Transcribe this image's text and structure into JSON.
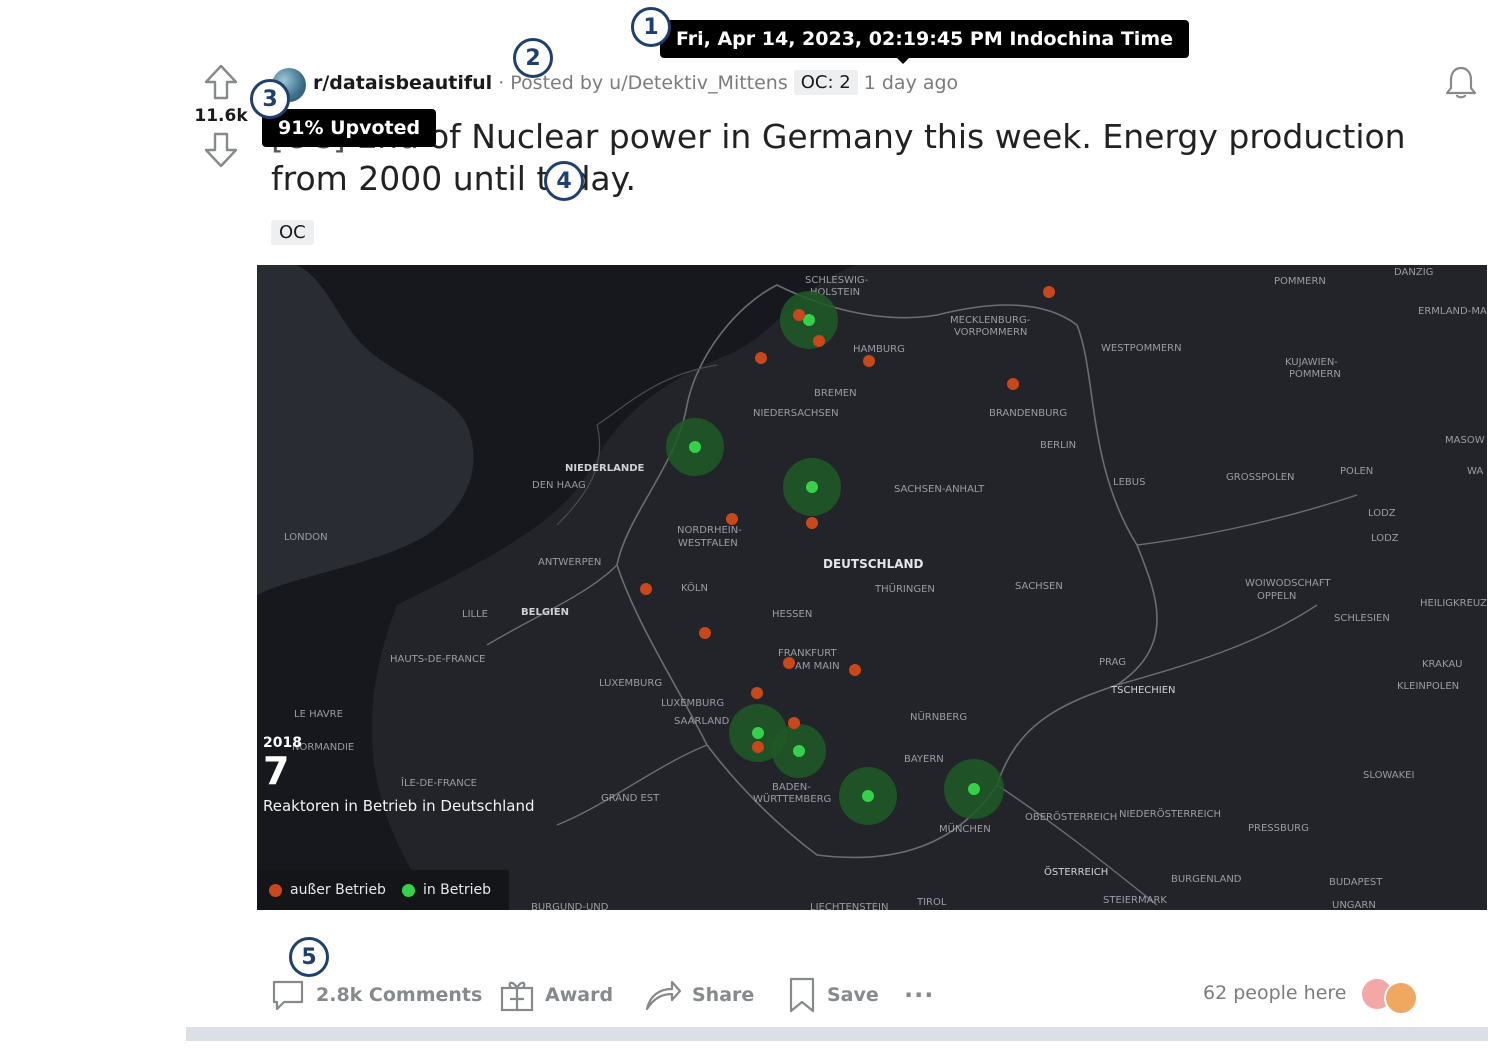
{
  "post": {
    "subreddit": "r/dataisbeautiful",
    "posted_by": "· Posted by u/Detektiv_Mittens",
    "oc_badge": "OC: 2",
    "time_ago": "1 day ago",
    "score": "11.6k",
    "title_hidden_prefix": "[OC] End",
    "title": "of Nuclear power in Germany this week. Energy production from 2000 until today.",
    "flair": "OC"
  },
  "tooltips": {
    "timestamp": "Fri, Apr 14, 2023, 02:19:45 PM Indochina Time",
    "upvoted": "91% Upvoted"
  },
  "badges": [
    "1",
    "2",
    "3",
    "4",
    "5"
  ],
  "map": {
    "year": "2018",
    "count": "7",
    "caption": "Reaktoren in Betrieb in Deutschland",
    "legend_off": "außer Betrieb",
    "legend_on": "in Betrieb",
    "color_off": "#c8471b",
    "color_on": "#36d14a",
    "labels": {
      "schleswig": "SCHLESWIG-",
      "holstein": "HOLSTEIN",
      "mecklenburg": "MECKLENBURG-",
      "vorpommern": "VORPOMMERN",
      "hamburg": "HAMBURG",
      "westpommern": "WESTPOMMERN",
      "pommern": "POMMERN",
      "danzig": "DANZIG",
      "ermland": "ERMLAND-MA",
      "kujawien": "KUJAWIEN-",
      "kujawien2": "POMMERN",
      "bremen": "BREMEN",
      "niedersachsen": "NIEDERSACHSEN",
      "brandenburg": "BRANDENBURG",
      "berlin": "BERLIN",
      "masow": "MASOW",
      "wa": "WA",
      "niederlande": "NIEDERLANDE",
      "denhaag": "DEN HAAG",
      "sachsenanhalt": "SACHSEN-ANHALT",
      "lebus": "LEBUS",
      "grosspolen": "GROSSPOLEN",
      "polen": "POLEN",
      "lodz": "LODZ",
      "lodz2": "LODZ",
      "london": "LONDON",
      "nrw1": "NORDRHEIN-",
      "nrw2": "WESTFALEN",
      "antwerpen": "ANTWERPEN",
      "deutschland": "DEUTSCHLAND",
      "thueringen": "THÜRINGEN",
      "sachsen": "SACHSEN",
      "woiwod1": "WOIWODSCHAFT",
      "woiwod2": "OPPELN",
      "heilig": "HEILIGKREUZ",
      "lille": "LILLE",
      "belgien": "BELGIEN",
      "koeln": "KÖLN",
      "hessen": "HESSEN",
      "schlesien": "SCHLESIEN",
      "hauts": "HAUTS-DE-FRANCE",
      "frankfurt1": "FRANKFURT",
      "frankfurt2": "AM MAIN",
      "prag": "PRAG",
      "krakau": "KRAKAU",
      "kleinpolen": "KLEINPOLEN",
      "luxemburg": "LUXEMBURG",
      "luxemburg2": "LUXEMBURG",
      "tschechien": "TSCHECHIEN",
      "saarland": "SAARLAND",
      "lehavre": "LE HAVRE",
      "nuernberg": "NÜRNBERG",
      "normandie": "NORMANDIE",
      "bayern": "BAYERN",
      "slowakei": "SLOWAKEI",
      "iledefrance": "ÎLE-DE-FRANCE",
      "grandest": "GRAND EST",
      "bw1": "BADEN-",
      "bw2": "WÜRTTEMBERG",
      "muenchen": "MÜNCHEN",
      "oberoest": "OBERÖSTERREICH",
      "niederoest": "NIEDERÖSTERREICH",
      "pressburg": "PRESSBURG",
      "oesterreich": "ÖSTERREICH",
      "burgenland": "BURGENLAND",
      "budapest": "BUDAPEST",
      "steiermark": "STEIERMARK",
      "ungarn": "UNGARN",
      "liechtenstein": "LIECHTENSTEIN",
      "tirol": "TIROL",
      "burgund": "BURGUND-UND"
    }
  },
  "actions": {
    "comments": "2.8k Comments",
    "award": "Award",
    "share": "Share",
    "save": "Save",
    "more": "···"
  },
  "people_here": "62 people here"
}
